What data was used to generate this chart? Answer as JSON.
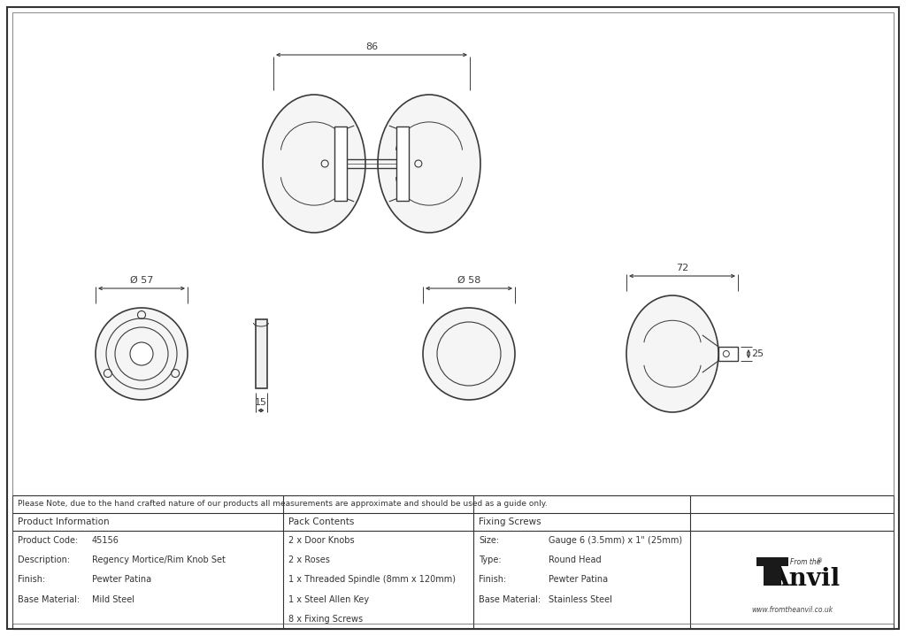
{
  "bg_color": "#ffffff",
  "line_color": "#3a3a3a",
  "dim_color": "#3a3a3a",
  "note_text": "Please Note, due to the hand crafted nature of our products all measurements are approximate and should be used as a guide only.",
  "product_info": {
    "header": "Product Information",
    "rows": [
      [
        "Product Code:",
        "45156"
      ],
      [
        "Description:",
        "Regency Mortice/Rim Knob Set"
      ],
      [
        "Finish:",
        "Pewter Patina"
      ],
      [
        "Base Material:",
        "Mild Steel"
      ]
    ]
  },
  "pack_contents": {
    "header": "Pack Contents",
    "rows": [
      "2 x Door Knobs",
      "2 x Roses",
      "1 x Threaded Spindle (8mm x 120mm)",
      "1 x Steel Allen Key",
      "8 x Fixing Screws"
    ]
  },
  "fixing_screws": {
    "header": "Fixing Screws",
    "rows": [
      [
        "Size:",
        "Gauge 6 (3.5mm) x 1\" (25mm)"
      ],
      [
        "Type:",
        "Round Head"
      ],
      [
        "Finish:",
        "Pewter Patina"
      ],
      [
        "Base Material:",
        "Stainless Steel"
      ]
    ]
  },
  "dim_86": "86",
  "dim_57": "Ø 57",
  "dim_58": "Ø 58",
  "dim_72": "72",
  "dim_15": "15",
  "dim_25": "25"
}
